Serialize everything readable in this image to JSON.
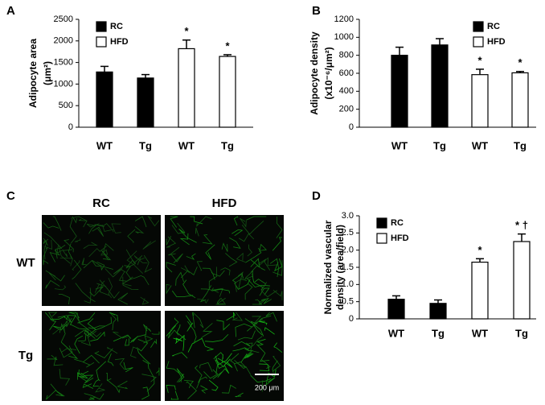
{
  "chart_data": [
    {
      "type": "bar",
      "panel": "A",
      "ylabel": [
        "Adipocyte area",
        "(μm²)"
      ],
      "categories": [
        "WT",
        "Tg",
        "WT",
        "Tg"
      ],
      "series": [
        {
          "name": "RC",
          "color": "#000000",
          "values": [
            1280,
            1140,
            null,
            null
          ],
          "errors": [
            130,
            80,
            null,
            null
          ]
        },
        {
          "name": "HFD",
          "color": "#ffffff",
          "values": [
            null,
            null,
            1820,
            1640
          ],
          "errors": [
            null,
            null,
            200,
            40
          ],
          "labels": [
            null,
            null,
            "*",
            "*"
          ]
        }
      ],
      "ylim": [
        0,
        2500
      ],
      "yticks": [
        0,
        500,
        1000,
        1500,
        2000,
        2500
      ],
      "legend": "top-left"
    },
    {
      "type": "bar",
      "panel": "B",
      "ylabel": [
        "Adipocyte density",
        "(x10⁻⁶/μm²)"
      ],
      "categories": [
        "WT",
        "Tg",
        "WT",
        "Tg"
      ],
      "series": [
        {
          "name": "RC",
          "color": "#000000",
          "values": [
            800,
            915,
            null,
            null
          ],
          "errors": [
            90,
            70,
            null,
            null
          ]
        },
        {
          "name": "HFD",
          "color": "#ffffff",
          "values": [
            null,
            null,
            585,
            605
          ],
          "errors": [
            null,
            null,
            60,
            15
          ],
          "labels": [
            null,
            null,
            "*",
            "*"
          ]
        }
      ],
      "ylim": [
        0,
        1200
      ],
      "yticks": [
        0,
        200,
        400,
        600,
        800,
        1000,
        1200
      ],
      "legend": "top-right"
    },
    {
      "type": "bar",
      "panel": "D",
      "ylabel": [
        "Normalized vascular",
        "density (area/field)"
      ],
      "categories": [
        "WT",
        "Tg",
        "WT",
        "Tg"
      ],
      "series": [
        {
          "name": "RC",
          "color": "#000000",
          "values": [
            0.57,
            0.45,
            null,
            null
          ],
          "errors": [
            0.1,
            0.1,
            null,
            null
          ]
        },
        {
          "name": "HFD",
          "color": "#ffffff",
          "values": [
            null,
            null,
            1.65,
            2.25
          ],
          "errors": [
            null,
            null,
            0.1,
            0.22
          ],
          "labels": [
            null,
            null,
            "*",
            "* †"
          ]
        }
      ],
      "ylim": [
        0,
        3
      ],
      "yticks": [
        0,
        0.5,
        {
          "value": 1,
          "label": "1.0"
        },
        1.5,
        {
          "value": 2,
          "label": "2.0"
        },
        2.5,
        {
          "value": 3,
          "label": "3.0"
        }
      ],
      "legend": "top-left"
    }
  ],
  "panel_c": {
    "label": "C",
    "columns": [
      "RC",
      "HFD"
    ],
    "rows": [
      "WT",
      "Tg"
    ],
    "scale_bar": "200 μm"
  }
}
